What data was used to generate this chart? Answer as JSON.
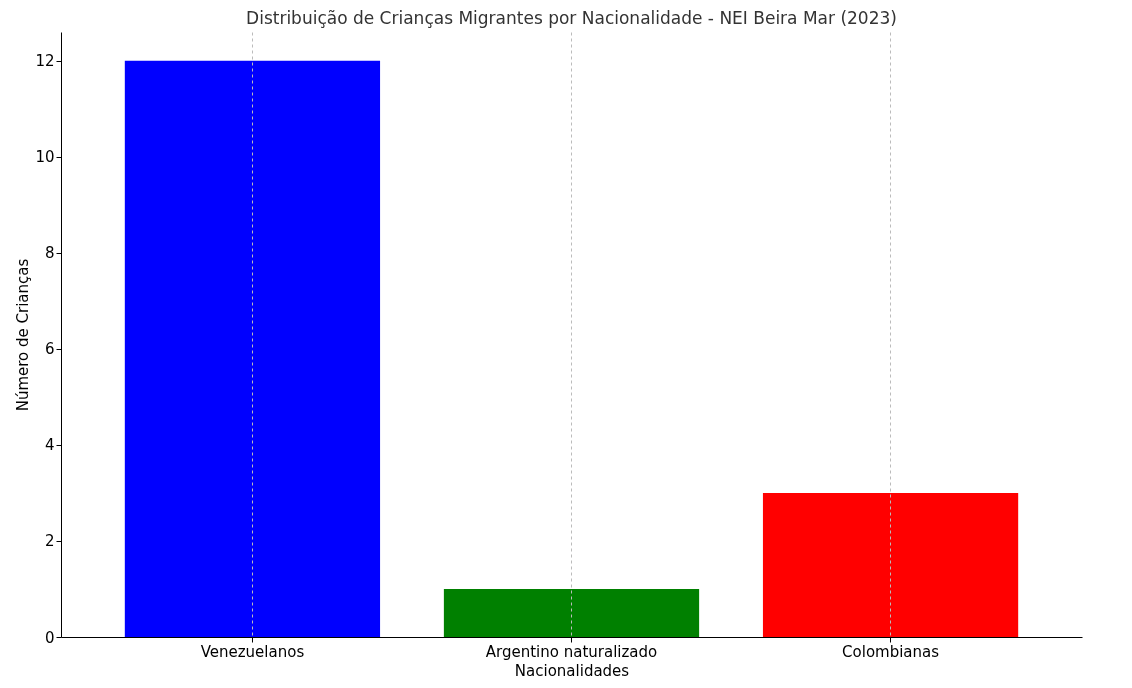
{
  "chart_data": {
    "type": "bar",
    "title": "Distribuição de Crianças Migrantes por Nacionalidade - NEI Beira Mar (2023)",
    "xlabel": "Nacionalidades",
    "ylabel": "Número de Crianças",
    "categories": [
      "Venezuelanos",
      "Argentino naturalizado",
      "Colombianas"
    ],
    "values": [
      12,
      1,
      3
    ],
    "colors": [
      "#0000ff",
      "#008000",
      "#ff0000"
    ],
    "ylim": [
      0,
      12.6
    ],
    "yticks": [
      0,
      2,
      4,
      6,
      8,
      10,
      12
    ],
    "grid": "x"
  }
}
